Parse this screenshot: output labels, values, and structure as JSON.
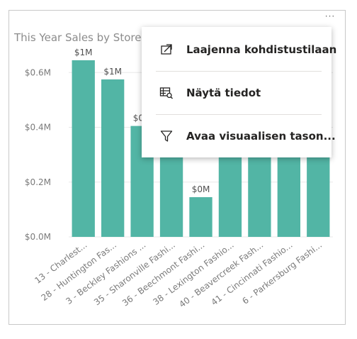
{
  "visual": {
    "title": "This Year Sales by Store",
    "more_options_glyph": "···"
  },
  "context_menu": {
    "items": [
      {
        "label": "Laajenna kohdistustilaan",
        "icon": "focus-mode-icon"
      },
      {
        "label": "Näytä tiedot",
        "icon": "show-data-icon"
      },
      {
        "label": "Avaa visuaalisen tason...",
        "icon": "filter-icon"
      }
    ]
  },
  "colors": {
    "bar": "#52b5a5",
    "gridline": "#e8e8e8"
  },
  "chart_data": {
    "type": "bar",
    "title": "This Year Sales by Store",
    "categories": [
      "13 - Charlest...",
      "28 - Huntington Fas...",
      "3 - Beckley Fashions ...",
      "35 - Sharonville Fashi...",
      "36 - Beechmont Fashi...",
      "38 - Lexington Fashio...",
      "40 - Beavercreek Fash...",
      "41 - Cincinnati Fashio...",
      "6 - Parkersburg Fashi..."
    ],
    "values": [
      0.645,
      0.575,
      0.405,
      0.33,
      0.145,
      0.33,
      0.33,
      0.33,
      0.33
    ],
    "data_labels": [
      "$1M",
      "$1M",
      "$0M",
      "",
      "$0M",
      "",
      "",
      "",
      ""
    ],
    "yticks": [
      {
        "value": 0.0,
        "label": "$0.0M"
      },
      {
        "value": 0.2,
        "label": "$0.2M"
      },
      {
        "value": 0.4,
        "label": "$0.4M"
      },
      {
        "value": 0.6,
        "label": "$0.6M"
      }
    ],
    "ylim": [
      0,
      0.65
    ],
    "grid": true,
    "legend": "none"
  }
}
